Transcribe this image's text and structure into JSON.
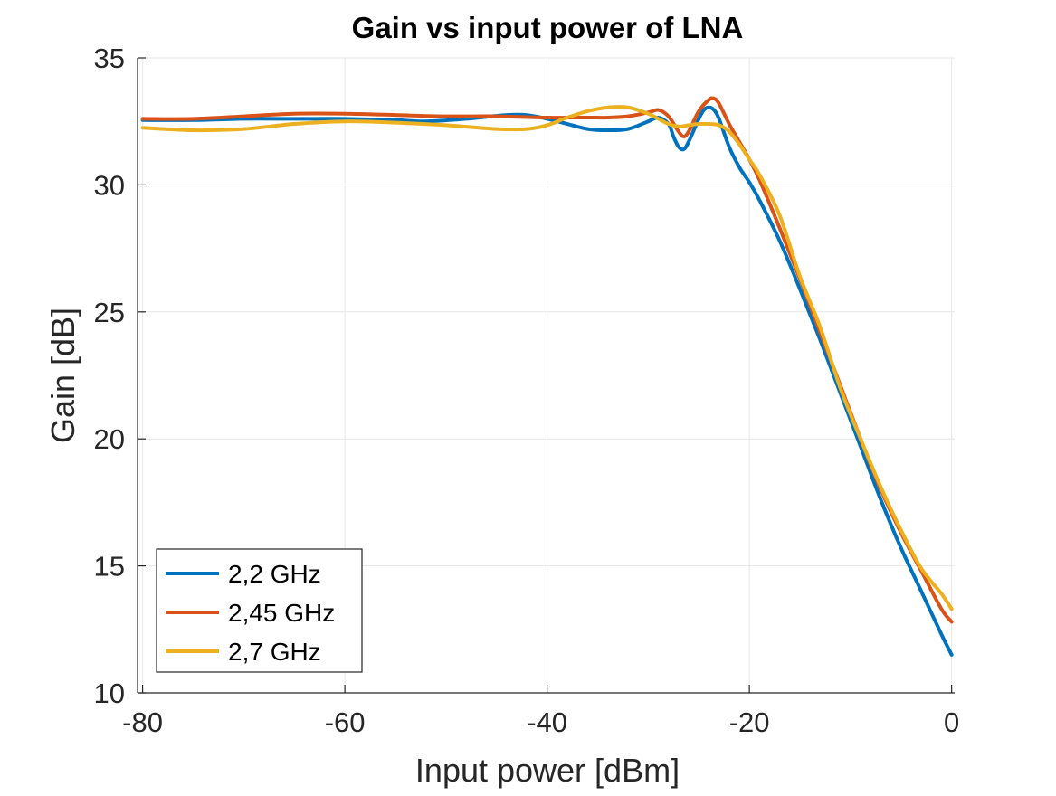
{
  "chart_data": {
    "type": "line",
    "title": "Gain vs input power of LNA",
    "xlabel": "Input power [dBm]",
    "ylabel": "Gain [dB]",
    "xlim": [
      -80.5,
      0.3
    ],
    "ylim": [
      10,
      35
    ],
    "xticks": [
      -80,
      -60,
      -40,
      -20,
      0
    ],
    "yticks": [
      10,
      15,
      20,
      25,
      30,
      35
    ],
    "xtick_labels": [
      "-80",
      "-60",
      "-40",
      "-20",
      "0"
    ],
    "ytick_labels": [
      "10",
      "15",
      "20",
      "25",
      "30",
      "35"
    ],
    "grid": true,
    "legend_position": "bottom-left",
    "series": [
      {
        "name": "2,2 GHz",
        "color": "#0072BD",
        "x": [
          -80,
          -75,
          -70,
          -65,
          -60,
          -55,
          -52,
          -48,
          -44,
          -42,
          -40,
          -38,
          -36,
          -34,
          -32,
          -30,
          -29,
          -28,
          -27.5,
          -27,
          -26.5,
          -26,
          -25,
          -24.5,
          -24,
          -23.5,
          -23,
          -22,
          -21,
          -20,
          -19,
          -17,
          -15,
          -13,
          -11,
          -9,
          -7,
          -5,
          -3,
          -1,
          0
        ],
        "y": [
          32.55,
          32.55,
          32.6,
          32.6,
          32.6,
          32.55,
          32.5,
          32.6,
          32.75,
          32.75,
          32.6,
          32.4,
          32.2,
          32.15,
          32.2,
          32.5,
          32.65,
          32.4,
          31.9,
          31.5,
          31.4,
          31.7,
          32.6,
          32.95,
          33.05,
          32.95,
          32.6,
          31.5,
          30.7,
          30.1,
          29.4,
          27.8,
          25.9,
          23.9,
          21.8,
          19.7,
          17.6,
          15.7,
          14.0,
          12.3,
          11.5
        ]
      },
      {
        "name": "2,45 GHz",
        "color": "#D95319",
        "x": [
          -80,
          -75,
          -70,
          -65,
          -60,
          -55,
          -50,
          -45,
          -40,
          -36,
          -34,
          -32,
          -30,
          -29,
          -28,
          -27,
          -26.5,
          -26,
          -25,
          -24,
          -23.5,
          -23,
          -22,
          -21,
          -20,
          -19,
          -17,
          -15,
          -13,
          -11,
          -9,
          -7,
          -5,
          -3,
          -1,
          0
        ],
        "y": [
          32.6,
          32.6,
          32.7,
          32.8,
          32.8,
          32.75,
          32.7,
          32.7,
          32.65,
          32.65,
          32.65,
          32.7,
          32.85,
          32.95,
          32.7,
          32.1,
          31.9,
          32.1,
          32.9,
          33.35,
          33.4,
          33.2,
          32.4,
          31.7,
          31.0,
          30.2,
          28.3,
          26.3,
          24.2,
          22.1,
          20.0,
          18.0,
          16.3,
          14.8,
          13.3,
          12.8
        ]
      },
      {
        "name": "2,7 GHz",
        "color": "#EDB120",
        "x": [
          -80,
          -75,
          -70,
          -65,
          -60,
          -55,
          -50,
          -45,
          -42,
          -40,
          -38,
          -36,
          -34,
          -32,
          -30,
          -29,
          -28,
          -27,
          -26,
          -25,
          -24,
          -23,
          -22,
          -21,
          -20,
          -19,
          -17,
          -15,
          -13,
          -11,
          -9,
          -7,
          -5,
          -3,
          -1,
          0
        ],
        "y": [
          32.25,
          32.15,
          32.2,
          32.4,
          32.5,
          32.45,
          32.35,
          32.2,
          32.2,
          32.35,
          32.65,
          32.9,
          33.05,
          33.05,
          32.8,
          32.6,
          32.4,
          32.3,
          32.35,
          32.4,
          32.4,
          32.35,
          32.1,
          31.6,
          31.0,
          30.4,
          28.8,
          26.4,
          24.4,
          22.0,
          20.0,
          18.1,
          16.4,
          14.9,
          13.9,
          13.3
        ]
      }
    ]
  }
}
